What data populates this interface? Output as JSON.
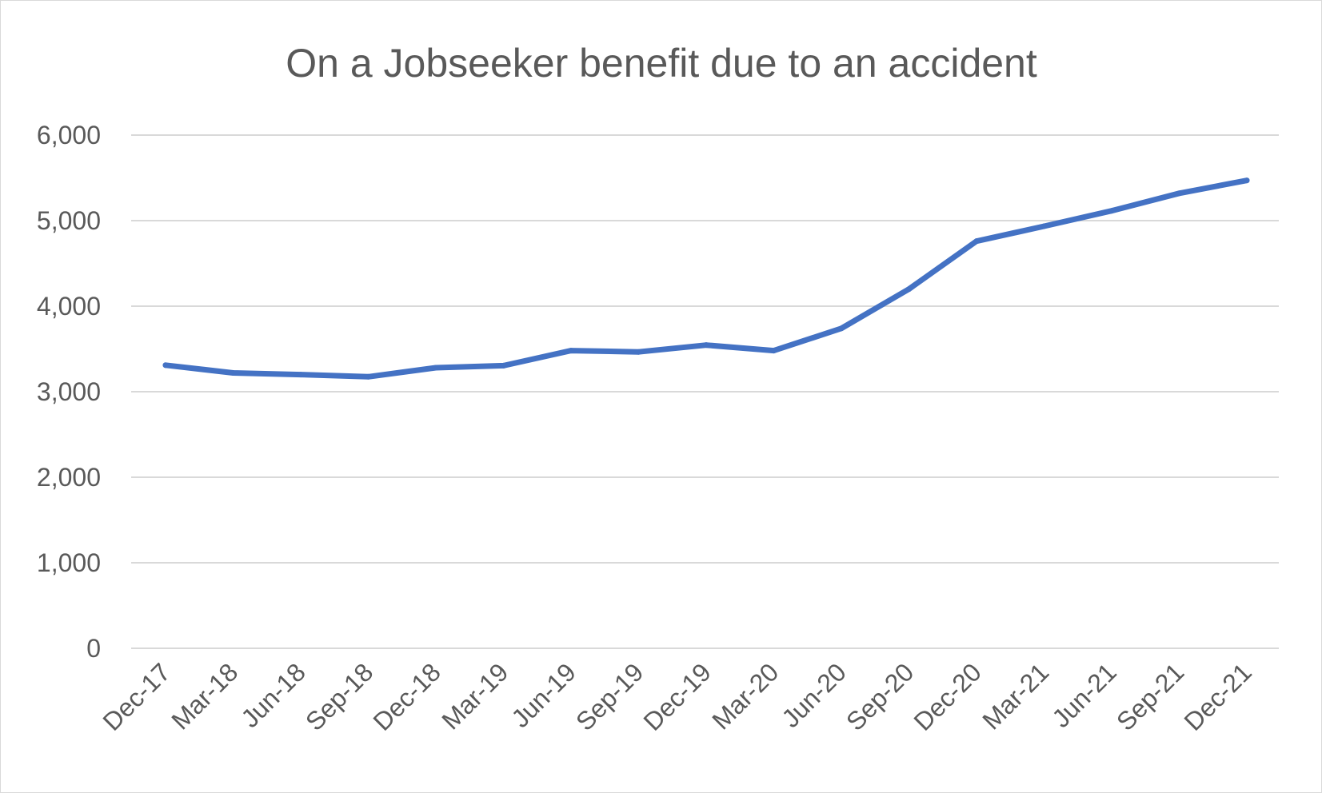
{
  "chart_data": {
    "type": "line",
    "title": "On a Jobseeker benefit due to an accident",
    "xlabel": "",
    "ylabel": "",
    "categories": [
      "Dec-17",
      "Mar-18",
      "Jun-18",
      "Sep-18",
      "Dec-18",
      "Mar-19",
      "Jun-19",
      "Sep-19",
      "Dec-19",
      "Mar-20",
      "Jun-20",
      "Sep-20",
      "Dec-20",
      "Mar-21",
      "Jun-21",
      "Sep-21",
      "Dec-21"
    ],
    "series": [
      {
        "values": [
          3310,
          3220,
          3200,
          3175,
          3280,
          3305,
          3480,
          3465,
          3545,
          3480,
          3740,
          4200,
          4760,
          4935,
          5115,
          5320,
          5470
        ],
        "color": "#4472C4"
      }
    ],
    "ylim": [
      0,
      6000
    ],
    "yticks": [
      0,
      1000,
      2000,
      3000,
      4000,
      5000,
      6000
    ],
    "ytick_labels": [
      "0",
      "1,000",
      "2,000",
      "3,000",
      "4,000",
      "5,000",
      "6,000"
    ],
    "grid": true,
    "gridline_color": "#d9d9d9",
    "legend": "none"
  }
}
